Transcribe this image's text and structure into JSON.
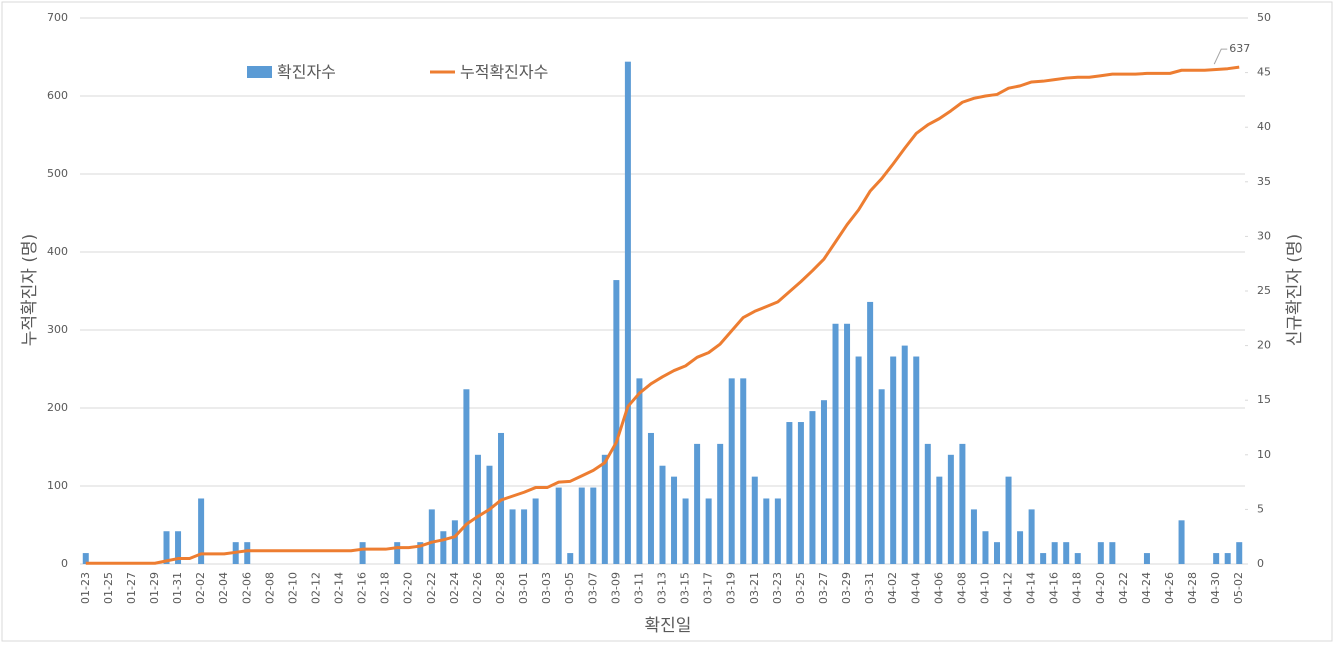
{
  "chart_data": {
    "type": "combo",
    "x_label": "확진일",
    "y_label": "누적확진자 (명)",
    "y2_label": "신규확진자 (명)",
    "categories": [
      "01-23",
      null,
      "01-25",
      null,
      "01-27",
      null,
      "01-29",
      null,
      "01-31",
      null,
      "02-02",
      null,
      "02-04",
      null,
      "02-06",
      null,
      "02-08",
      null,
      "02-10",
      null,
      "02-12",
      null,
      "02-14",
      null,
      "02-16",
      null,
      "02-18",
      null,
      "02-20",
      null,
      "02-22",
      null,
      "02-24",
      null,
      "02-26",
      null,
      "02-28",
      null,
      "03-01",
      null,
      "03-03",
      null,
      "03-05",
      null,
      "03-07",
      null,
      "03-09",
      null,
      "03-11",
      null,
      "03-13",
      null,
      "03-15",
      null,
      "03-17",
      null,
      "03-19",
      null,
      "03-21",
      null,
      "03-23",
      null,
      "03-25",
      null,
      "03-27",
      null,
      "03-29",
      null,
      "03-31",
      null,
      "04-02",
      null,
      "04-04",
      null,
      "04-06",
      null,
      "04-08",
      null,
      "04-10",
      null,
      "04-12",
      null,
      "04-14",
      null,
      "04-16",
      null,
      "04-18",
      null,
      "04-20",
      null,
      "04-22",
      null,
      "04-24",
      null,
      "04-26",
      null,
      "04-28",
      null,
      "04-30",
      null,
      "05-02"
    ],
    "series": [
      {
        "name": "확진자수",
        "type": "bar",
        "axis": "y2",
        "color": "#5b9bd5",
        "values": [
          1,
          0,
          0,
          0,
          0,
          0,
          0,
          3,
          3,
          0,
          6,
          0,
          0,
          2,
          2,
          0,
          0,
          0,
          0,
          0,
          0,
          0,
          0,
          0,
          2,
          0,
          0,
          2,
          0,
          2,
          5,
          3,
          4,
          16,
          10,
          9,
          12,
          5,
          5,
          6,
          0,
          7,
          1,
          7,
          7,
          10,
          26,
          46,
          17,
          12,
          9,
          8,
          6,
          11,
          6,
          11,
          17,
          17,
          8,
          6,
          6,
          13,
          13,
          14,
          15,
          22,
          22,
          19,
          24,
          16,
          19,
          20,
          19,
          11,
          8,
          10,
          11,
          5,
          3,
          2,
          8,
          3,
          5,
          1,
          2,
          2,
          1,
          0,
          2,
          2,
          0,
          0,
          1,
          0,
          0,
          4,
          0,
          0,
          1,
          1,
          2
        ]
      },
      {
        "name": "누적확진자수",
        "type": "line",
        "color": "#ed7d31",
        "values": [
          1,
          1,
          1,
          1,
          1,
          1,
          1,
          4,
          7,
          7,
          13,
          13,
          13,
          15,
          17,
          17,
          17,
          17,
          17,
          17,
          17,
          17,
          17,
          17,
          19,
          19,
          19,
          21,
          21,
          23,
          28,
          31,
          35,
          51,
          61,
          70,
          82,
          87,
          92,
          98,
          98,
          105,
          106,
          113,
          120,
          130,
          156,
          202,
          219,
          231,
          240,
          248,
          254,
          265,
          271,
          282,
          299,
          316,
          324,
          330,
          336,
          349,
          362,
          376,
          391,
          413,
          435,
          454,
          478,
          494,
          513,
          533,
          552,
          563,
          571,
          581,
          592,
          597,
          600,
          602,
          610,
          613,
          618,
          619,
          621,
          623,
          624,
          624,
          626,
          628,
          628,
          628,
          629,
          629,
          629,
          633,
          633,
          633,
          634,
          635,
          637
        ]
      }
    ],
    "ylim": [
      0,
      700
    ],
    "yticks": [
      0,
      100,
      200,
      300,
      400,
      500,
      600,
      700
    ],
    "y2lim": [
      0,
      50
    ],
    "y2ticks": [
      0,
      5,
      10,
      15,
      20,
      25,
      30,
      35,
      40,
      45,
      50
    ],
    "grid": true
  }
}
